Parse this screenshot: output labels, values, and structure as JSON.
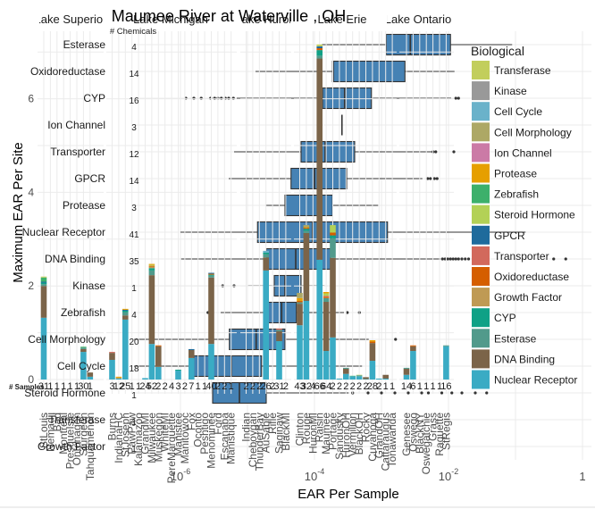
{
  "chart_data": [
    {
      "type": "bar",
      "stacked": true,
      "title": "Maumee River at Waterville , OH",
      "xlabel": "",
      "ylabel": "Maximum EAR Per Site",
      "ylim": [
        0,
        7.4
      ],
      "y_ticks": [
        {
          "value": 0,
          "label": "0"
        },
        {
          "value": 2,
          "label": "2"
        },
        {
          "value": 4,
          "label": "4"
        },
        {
          "value": 6,
          "label": "6"
        }
      ],
      "samples_label": "# Samples",
      "grid": true,
      "facets": [
        {
          "name": "Lake Superior",
          "sites": [
            {
              "name": "StLouis",
              "samples": 31,
              "segments": {
                "Nuclear Receptor": 1.32,
                "DNA Binding": 0.68,
                "Esterase": 0.04,
                "CYP": 0.03,
                "GPCR": 0.02,
                "Zebrafish": 0.09,
                "Transferase": 0.02
              }
            },
            {
              "name": "Nemadji",
              "samples": 1,
              "segments": {}
            },
            {
              "name": "Bad",
              "samples": 1,
              "segments": {}
            },
            {
              "name": "Montreal",
              "samples": 1,
              "segments": {}
            },
            {
              "name": "PresqueIsle",
              "samples": 1,
              "segments": {}
            },
            {
              "name": "Ontonagon",
              "samples": 1,
              "segments": {}
            },
            {
              "name": "Sturgeon",
              "samples": 30,
              "segments": {
                "Nuclear Receptor": 0.59,
                "DNA Binding": 0.06,
                "Esterase": 0.03,
                "Zebrafish": 0.02
              }
            },
            {
              "name": "Tahquamenon",
              "samples": 1,
              "segments": {
                "Nuclear Receptor": 0.06,
                "DNA Binding": 0.09
              }
            }
          ]
        },
        {
          "name": "Lake Michigan",
          "sites": [
            {
              "name": "Burns",
              "samples": 3,
              "segments": {
                "Nuclear Receptor": 0.42,
                "DNA Binding": 0.15,
                "Transporter": 0.02
              }
            },
            {
              "name": "IndianaHC",
              "samples": 12,
              "segments": {
                "Nuclear Receptor": 0.02,
                "Growth Factor": 0.02,
                "Protease": 0.02
              }
            },
            {
              "name": "StJoseph",
              "samples": 25,
              "segments": {
                "Nuclear Receptor": 1.28,
                "DNA Binding": 0.09,
                "Esterase": 0.07,
                "CYP": 0.03,
                "GPCR": 0.02,
                "Protease": 0.02
              }
            },
            {
              "name": "PawPaw",
              "samples": 1,
              "segments": {}
            },
            {
              "name": "Kalamazoo",
              "samples": 1,
              "segments": {}
            },
            {
              "name": "GrandMI",
              "samples": 24,
              "segments": {
                "Nuclear Receptor": 0.03
              }
            },
            {
              "name": "Milwaukee",
              "samples": 52,
              "segments": {
                "Nuclear Receptor": 0.76,
                "DNA Binding": 1.47,
                "Esterase": 0.1,
                "CYP": 0.05,
                "Growth Factor": 0.03,
                "Oxidoreductase": 0.02,
                "Steroid Hormone": 0.02,
                "Protease": 0.02
              }
            },
            {
              "name": "Muskegon",
              "samples": 2,
              "segments": {
                "Nuclear Receptor": 0.27,
                "DNA Binding": 0.44,
                "Oxidoreductase": 0.02
              }
            },
            {
              "name": "WhiteMI",
              "samples": 2,
              "segments": {}
            },
            {
              "name": "PereMarquette",
              "samples": 4,
              "segments": {}
            },
            {
              "name": "Manistee",
              "samples": 3,
              "segments": {
                "Nuclear Receptor": 0.19,
                "CYP": 0.02
              }
            },
            {
              "name": "Manitowoc",
              "samples": 2,
              "segments": {}
            },
            {
              "name": "Fox",
              "samples": 7,
              "segments": {
                "Nuclear Receptor": 0.46,
                "DNA Binding": 0.17,
                "GPCR": 0.02
              }
            },
            {
              "name": "Oconto",
              "samples": 1,
              "segments": {}
            },
            {
              "name": "Peshtigo",
              "samples": 1,
              "segments": {}
            },
            {
              "name": "Menominee",
              "samples": 40,
              "segments": {
                "Nuclear Receptor": 0.76,
                "DNA Binding": 1.42,
                "Esterase": 0.04,
                "CYP": 0.02,
                "Oxidoreductase": 0.02,
                "GPCR": 0.02
              }
            },
            {
              "name": "Ford",
              "samples": 2,
              "segments": {}
            },
            {
              "name": "Escanaba",
              "samples": 2,
              "segments": {}
            },
            {
              "name": "Manistique",
              "samples": 1,
              "segments": {}
            }
          ]
        },
        {
          "name": "Lake Huron",
          "sites": [
            {
              "name": "Indian",
              "samples": 2,
              "segments": {}
            },
            {
              "name": "Cheboygan",
              "samples": 2,
              "segments": {}
            },
            {
              "name": "ThunderBay",
              "samples": 2,
              "segments": {}
            },
            {
              "name": "AuSable",
              "samples": 26,
              "segments": {
                "Nuclear Receptor": 2.33,
                "DNA Binding": 0.28,
                "Esterase": 0.07,
                "CYP": 0.03,
                "Cell Cycle": 0.04
              }
            },
            {
              "name": "Rifle",
              "samples": 2,
              "segments": {}
            },
            {
              "name": "Saginaw",
              "samples": 31,
              "segments": {
                "Nuclear Receptor": 0.82,
                "DNA Binding": 0.21,
                "Esterase": 0.03,
                "Transporter": 0.03
              }
            },
            {
              "name": "BlackMI",
              "samples": 2,
              "segments": {}
            }
          ]
        },
        {
          "name": "Lake Erie",
          "sites": [
            {
              "name": "Clinton",
              "samples": 43,
              "segments": {
                "Nuclear Receptor": 1.16,
                "DNA Binding": 0.46,
                "Esterase": 0.03,
                "Oxidoreductase": 0.03,
                "Protease": 0.06,
                "Cell Morphology": 0.11
              }
            },
            {
              "name": "Rouge",
              "samples": 32,
              "segments": {
                "Nuclear Receptor": 1.68,
                "DNA Binding": 1.45,
                "Esterase": 0.05,
                "CYP": 0.04,
                "Oxidoreductase": 0.02,
                "Protease": 0.02,
                "Cell Morphology": 0.04
              }
            },
            {
              "name": "HuronMI",
              "samples": 4,
              "segments": {}
            },
            {
              "name": "Raisin",
              "samples": 66,
              "segments": {
                "Nuclear Receptor": 2.56,
                "DNA Binding": 4.3,
                "Esterase": 0.06,
                "CYP": 0.12,
                "Oxidoreductase": 0.04,
                "GPCR": 0.04,
                "Transferase": 0.04
              }
            },
            {
              "name": "Maumee",
              "samples": 64,
              "segments": {
                "Nuclear Receptor": 0.61,
                "DNA Binding": 1.05,
                "Esterase": 0.08,
                "Oxidoreductase": 0.03,
                "Transporter": 0.02,
                "Steroid Hormone": 0.05,
                "Protease": 0.03
              }
            },
            {
              "name": "Portage",
              "samples": 2,
              "segments": {
                "Nuclear Receptor": 0.9,
                "DNA Binding": 1.7,
                "Esterase": 0.42,
                "CYP": 0.06,
                "Oxidoreductase": 0.06,
                "Steroid Hormone": 0.16
              }
            },
            {
              "name": "Sandusky",
              "samples": 2,
              "segments": {
                "Nuclear Receptor": 0.02
              }
            },
            {
              "name": "HuronOH",
              "samples": 2,
              "segments": {
                "Nuclear Receptor": 0.12,
                "DNA Binding": 0.11,
                "Esterase": 0.02
              }
            },
            {
              "name": "Vermilion",
              "samples": 2,
              "segments": {
                "Nuclear Receptor": 0.07,
                "Zebrafish": 0.01
              }
            },
            {
              "name": "BlackOH",
              "samples": 2,
              "segments": {
                "Nuclear Receptor": 0.07,
                "Esterase": 0.02,
                "Steroid Hormone": 0.01
              }
            },
            {
              "name": "Rocky",
              "samples": 2,
              "segments": {
                "Nuclear Receptor": 0.01,
                "DNA Binding": 0.04
              }
            },
            {
              "name": "Cuyahoga",
              "samples": 28,
              "segments": {
                "Nuclear Receptor": 0.4,
                "DNA Binding": 0.38,
                "Oxidoreductase": 0.03,
                "Protease": 0.03
              }
            },
            {
              "name": "GrandOH",
              "samples": 2,
              "segments": {
                "Nuclear Receptor": 0.02
              }
            },
            {
              "name": "Cattaraugus",
              "samples": 1,
              "segments": {
                "Nuclear Receptor": 0.02,
                "DNA Binding": 0.08
              }
            },
            {
              "name": "Tonawanda",
              "samples": 1,
              "segments": {}
            }
          ]
        },
        {
          "name": "Lake Ontario",
          "sites": [
            {
              "name": "Genesee",
              "samples": 14,
              "segments": {
                "Nuclear Receptor": 0.1,
                "DNA Binding": 0.13,
                "Esterase": 0.02
              }
            },
            {
              "name": "Oswego",
              "samples": 6,
              "segments": {
                "Nuclear Receptor": 0.61,
                "DNA Binding": 0.1,
                "Oxidoreductase": 0.02
              }
            },
            {
              "name": "BlackNY",
              "samples": 1,
              "segments": {}
            },
            {
              "name": "Oswegatchie",
              "samples": 1,
              "segments": {}
            },
            {
              "name": "Grass",
              "samples": 1,
              "segments": {}
            },
            {
              "name": "Raquette",
              "samples": 1,
              "segments": {}
            },
            {
              "name": "StRegis",
              "samples": 16,
              "segments": {
                "Nuclear Receptor": 0.71,
                "Esterase": 0.02
              }
            }
          ]
        }
      ]
    },
    {
      "type": "boxplot",
      "orientation": "horizontal",
      "xlabel": "EAR Per Sample",
      "ylabel": "",
      "x_scale": "log10",
      "xlim_log10": [
        -6.7,
        0.13
      ],
      "count_label": "# Chemicals",
      "grid": true,
      "x_ticks": [
        {
          "value": -6,
          "base": "10",
          "exp": "-6"
        },
        {
          "value": -4,
          "base": "10",
          "exp": "-4"
        },
        {
          "value": -2,
          "base": "10",
          "exp": "-2"
        },
        {
          "value": 0,
          "base": "1",
          "exp": ""
        }
      ],
      "boxes": [
        {
          "category": "Esterase",
          "chemicals": "4",
          "whisker_low": -3.89,
          "q1": -2.93,
          "median": -2.57,
          "q3": -1.97,
          "whisker_high": -1.05,
          "outliers": []
        },
        {
          "category": "Oxidoreductase",
          "chemicals": "14",
          "whisker_low": -4.88,
          "q1": -3.73,
          "median": -3.72,
          "q3": -2.65,
          "whisker_high": -1.91,
          "outliers": []
        },
        {
          "category": "CYP",
          "chemicals": "16",
          "whisker_low": -5.16,
          "q1": -3.88,
          "median": -3.55,
          "q3": -3.15,
          "whisker_high": -1.96,
          "outliers": [
            -5.92,
            -5.8,
            -5.69,
            -5.55,
            -5.49,
            -5.44,
            -5.39,
            -5.33,
            -5.28,
            -5.21,
            -1.89,
            -1.85
          ]
        },
        {
          "category": "Ion Channel",
          "chemicals": "3",
          "whisker_low": -3.59,
          "q1": -3.59,
          "median": -3.59,
          "q3": -3.59,
          "whisker_high": -3.59,
          "outliers": []
        },
        {
          "category": "Transporter",
          "chemicals": "12",
          "whisker_low": -5.2,
          "q1": -4.2,
          "median": -3.84,
          "q3": -3.4,
          "whisker_high": -2.25,
          "outliers": [
            -2.23,
            -2.19,
            -1.92
          ]
        },
        {
          "category": "GPCR",
          "chemicals": "14",
          "whisker_low": -5.28,
          "q1": -4.35,
          "median": -4.0,
          "q3": -3.52,
          "whisker_high": -2.39,
          "outliers": [
            -2.31,
            -2.27,
            -2.21,
            -2.17
          ]
        },
        {
          "category": "Protease",
          "chemicals": "3",
          "whisker_low": -4.73,
          "q1": -4.44,
          "median": -3.93,
          "q3": -3.73,
          "whisker_high": -3.05,
          "outliers": []
        },
        {
          "category": "Nuclear Receptor",
          "chemicals": "41",
          "whisker_low": -6.0,
          "q1": -4.85,
          "median": -4.03,
          "q3": -2.91,
          "whisker_high": -0.85,
          "outliers": []
        },
        {
          "category": "DNA Binding",
          "chemicals": "35",
          "whisker_low": -5.99,
          "q1": -4.72,
          "median": -4.28,
          "q3": -3.76,
          "whisker_high": -2.12,
          "outliers": [
            -2.09,
            -2.05,
            -2.01,
            -1.97,
            -1.93,
            -1.89,
            -1.85,
            -1.8,
            -1.75,
            -1.7,
            -1.6,
            -1.5,
            -0.43,
            -0.25
          ]
        },
        {
          "category": "Kinase",
          "chemicals": "1",
          "whisker_low": -4.99,
          "q1": -4.6,
          "median": -4.44,
          "q3": -4.2,
          "whisker_high": -3.85,
          "outliers": [
            -5.37,
            -5.2
          ]
        },
        {
          "category": "Zebrafish",
          "chemicals": "4",
          "whisker_low": -5.4,
          "q1": -4.72,
          "median": -4.49,
          "q3": -4.27,
          "whisker_high": -3.56,
          "outliers": [
            -5.59,
            -3.51,
            -3.33
          ]
        },
        {
          "category": "Cell Morphology",
          "chemicals": "20",
          "whisker_low": -6.69,
          "q1": -5.27,
          "median": -4.87,
          "q3": -4.44,
          "whisker_high": -3.19,
          "outliers": [
            -2.79
          ]
        },
        {
          "category": "Cell Cycle",
          "chemicals": "18",
          "whisker_low": -6.69,
          "q1": -5.8,
          "median": -5.24,
          "q3": -4.79,
          "whisker_high": -3.29,
          "outliers": []
        },
        {
          "category": "Steroid Hormone",
          "chemicals": "1",
          "whisker_low": -5.52,
          "q1": -5.52,
          "median": -5.12,
          "q3": -4.72,
          "whisker_high": -3.49,
          "outliers": [
            -3.43,
            -3.2,
            -3.0,
            -2.8,
            -2.6,
            -2.4,
            -2.3,
            -2.1,
            -1.95,
            -1.8,
            -1.6,
            -1.43
          ]
        },
        {
          "category": "Transferase",
          "chemicals": "1",
          "whisker_low": null,
          "q1": null,
          "median": null,
          "q3": null,
          "whisker_high": null,
          "outliers": []
        },
        {
          "category": "Growth Factor",
          "chemicals": "1",
          "whisker_low": null,
          "q1": null,
          "median": null,
          "q3": null,
          "whisker_high": null,
          "outliers": []
        }
      ],
      "box_fill": "#4682B4",
      "box_outline": "#333333"
    }
  ],
  "legend": {
    "title": "Biological",
    "placement": "right",
    "items": [
      {
        "label": "Transferase",
        "color": "#C2CE5C"
      },
      {
        "label": "Kinase",
        "color": "#999999"
      },
      {
        "label": "Cell Cycle",
        "color": "#6AB2CA"
      },
      {
        "label": "Cell Morphology",
        "color": "#ADA865"
      },
      {
        "label": "Ion Channel",
        "color": "#CB7AA6"
      },
      {
        "label": "Protease",
        "color": "#E69F00"
      },
      {
        "label": "Zebrafish",
        "color": "#3DB06B"
      },
      {
        "label": "Steroid Hormone",
        "color": "#B3D156"
      },
      {
        "label": "GPCR",
        "color": "#1F6B9C"
      },
      {
        "label": "Transporter",
        "color": "#D2695C"
      },
      {
        "label": "Oxidoreductase",
        "color": "#D55E00"
      },
      {
        "label": "Growth Factor",
        "color": "#BF9A54"
      },
      {
        "label": "CYP",
        "color": "#0FA186"
      },
      {
        "label": "Esterase",
        "color": "#519A8B"
      },
      {
        "label": "DNA Binding",
        "color": "#7B6449"
      },
      {
        "label": "Nuclear Receptor",
        "color": "#3AABC4"
      }
    ]
  }
}
